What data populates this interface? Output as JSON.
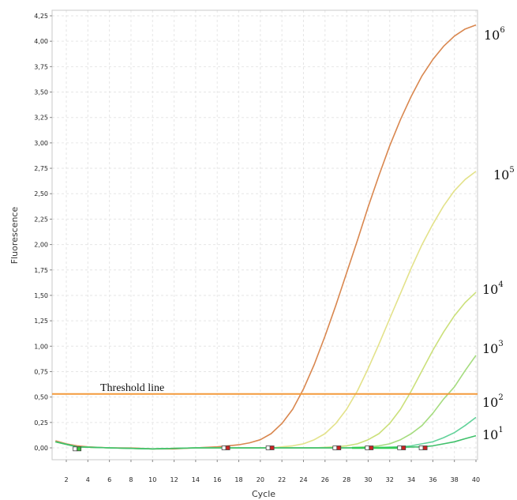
{
  "chart_data": {
    "type": "line",
    "xlabel": "Cycle",
    "ylabel": "Fluorescence",
    "xlim": [
      1,
      40
    ],
    "ylim": [
      -0.2,
      4.25
    ],
    "x_ticks": [
      2,
      4,
      6,
      8,
      10,
      12,
      14,
      16,
      18,
      20,
      22,
      24,
      26,
      28,
      30,
      32,
      34,
      36,
      38,
      40
    ],
    "y_ticks": [
      0.0,
      0.25,
      0.5,
      0.75,
      1.0,
      1.25,
      1.5,
      1.75,
      2.0,
      2.25,
      2.5,
      2.75,
      3.0,
      3.25,
      3.5,
      3.75,
      4.0,
      4.25
    ],
    "y_tick_labels": [
      "0,00",
      "0,25",
      "0,50",
      "0,75",
      "1,00",
      "1,25",
      "1,50",
      "1,75",
      "2,00",
      "2,25",
      "2,50",
      "2,75",
      "3,00",
      "3,25",
      "3,50",
      "3,75",
      "4,00",
      "4,25"
    ],
    "grid": true,
    "threshold": {
      "label": "Threshold line",
      "value": 0.53,
      "color": "#f39a3c"
    },
    "series": [
      {
        "color": "#d9874f",
        "label_base": "10",
        "label_exp": "6",
        "points": [
          [
            1,
            0.07
          ],
          [
            2,
            0.04
          ],
          [
            3,
            0.02
          ],
          [
            4,
            0.01
          ],
          [
            6,
            0.0
          ],
          [
            8,
            0.0
          ],
          [
            10,
            -0.01
          ],
          [
            12,
            -0.01
          ],
          [
            14,
            0.0
          ],
          [
            16,
            0.01
          ],
          [
            17,
            0.02
          ],
          [
            18,
            0.03
          ],
          [
            19,
            0.05
          ],
          [
            20,
            0.08
          ],
          [
            21,
            0.14
          ],
          [
            22,
            0.24
          ],
          [
            23,
            0.38
          ],
          [
            24,
            0.58
          ],
          [
            25,
            0.82
          ],
          [
            26,
            1.1
          ],
          [
            27,
            1.4
          ],
          [
            28,
            1.72
          ],
          [
            29,
            2.04
          ],
          [
            30,
            2.37
          ],
          [
            31,
            2.68
          ],
          [
            32,
            2.97
          ],
          [
            33,
            3.23
          ],
          [
            34,
            3.46
          ],
          [
            35,
            3.66
          ],
          [
            36,
            3.82
          ],
          [
            37,
            3.95
          ],
          [
            38,
            4.05
          ],
          [
            39,
            4.12
          ],
          [
            40,
            4.16
          ]
        ]
      },
      {
        "color": "#e3e28a",
        "label_base": "10",
        "label_exp": "5",
        "points": [
          [
            1,
            0.06
          ],
          [
            3,
            0.01
          ],
          [
            6,
            0.0
          ],
          [
            10,
            -0.01
          ],
          [
            14,
            0.0
          ],
          [
            18,
            0.0
          ],
          [
            21,
            0.0
          ],
          [
            22,
            0.01
          ],
          [
            23,
            0.02
          ],
          [
            24,
            0.04
          ],
          [
            25,
            0.08
          ],
          [
            26,
            0.14
          ],
          [
            27,
            0.24
          ],
          [
            28,
            0.38
          ],
          [
            29,
            0.56
          ],
          [
            30,
            0.78
          ],
          [
            31,
            1.02
          ],
          [
            32,
            1.27
          ],
          [
            33,
            1.52
          ],
          [
            34,
            1.77
          ],
          [
            35,
            2.0
          ],
          [
            36,
            2.2
          ],
          [
            37,
            2.38
          ],
          [
            38,
            2.53
          ],
          [
            39,
            2.64
          ],
          [
            40,
            2.72
          ]
        ]
      },
      {
        "color": "#cbe07a",
        "label_base": "10",
        "label_exp": "4",
        "points": [
          [
            1,
            0.06
          ],
          [
            3,
            0.01
          ],
          [
            6,
            0.0
          ],
          [
            10,
            -0.01
          ],
          [
            14,
            0.0
          ],
          [
            20,
            0.0
          ],
          [
            25,
            0.0
          ],
          [
            27,
            0.01
          ],
          [
            28,
            0.02
          ],
          [
            29,
            0.04
          ],
          [
            30,
            0.08
          ],
          [
            31,
            0.14
          ],
          [
            32,
            0.24
          ],
          [
            33,
            0.38
          ],
          [
            34,
            0.56
          ],
          [
            35,
            0.76
          ],
          [
            36,
            0.96
          ],
          [
            37,
            1.14
          ],
          [
            38,
            1.3
          ],
          [
            39,
            1.43
          ],
          [
            40,
            1.53
          ]
        ]
      },
      {
        "color": "#a5dc7f",
        "label_base": "10",
        "label_exp": "3",
        "points": [
          [
            1,
            0.06
          ],
          [
            3,
            0.01
          ],
          [
            6,
            0.0
          ],
          [
            10,
            -0.01
          ],
          [
            14,
            0.0
          ],
          [
            20,
            0.0
          ],
          [
            28,
            0.0
          ],
          [
            30,
            0.01
          ],
          [
            31,
            0.02
          ],
          [
            32,
            0.04
          ],
          [
            33,
            0.08
          ],
          [
            34,
            0.14
          ],
          [
            35,
            0.22
          ],
          [
            36,
            0.34
          ],
          [
            37,
            0.48
          ],
          [
            38,
            0.6
          ],
          [
            39,
            0.76
          ],
          [
            40,
            0.91
          ]
        ]
      },
      {
        "color": "#62d29a",
        "label_base": "10",
        "label_exp": "2",
        "points": [
          [
            1,
            0.06
          ],
          [
            3,
            0.01
          ],
          [
            6,
            0.0
          ],
          [
            10,
            -0.01
          ],
          [
            14,
            0.0
          ],
          [
            20,
            0.0
          ],
          [
            30,
            0.0
          ],
          [
            33,
            0.01
          ],
          [
            34,
            0.02
          ],
          [
            35,
            0.04
          ],
          [
            36,
            0.06
          ],
          [
            37,
            0.1
          ],
          [
            38,
            0.15
          ],
          [
            39,
            0.22
          ],
          [
            40,
            0.3
          ]
        ]
      },
      {
        "color": "#3fc06a",
        "label_base": "10",
        "label_exp": "1",
        "points": [
          [
            1,
            0.06
          ],
          [
            3,
            0.01
          ],
          [
            6,
            0.0
          ],
          [
            10,
            -0.01
          ],
          [
            14,
            0.0
          ],
          [
            20,
            0.0
          ],
          [
            30,
            0.0
          ],
          [
            35,
            0.01
          ],
          [
            36,
            0.02
          ],
          [
            37,
            0.04
          ],
          [
            38,
            0.06
          ],
          [
            39,
            0.09
          ],
          [
            40,
            0.12
          ]
        ]
      }
    ],
    "markers": [
      {
        "x": 3.0,
        "y": -0.01,
        "color": "#3cc43c"
      },
      {
        "x": 16.8,
        "y": 0.0,
        "color": "#cc2222"
      },
      {
        "x": 20.9,
        "y": 0.0,
        "color": "#cc2222"
      },
      {
        "x": 27.1,
        "y": 0.0,
        "color": "#cc2222"
      },
      {
        "x": 30.1,
        "y": 0.0,
        "color": "#cc2222"
      },
      {
        "x": 33.1,
        "y": 0.0,
        "color": "#cc2222"
      },
      {
        "x": 35.1,
        "y": 0.0,
        "color": "#cc2222"
      }
    ],
    "green_base_segment": {
      "x_start": 28.5,
      "x_end": 33.5,
      "y": 0.0,
      "color": "#33cc55"
    }
  }
}
